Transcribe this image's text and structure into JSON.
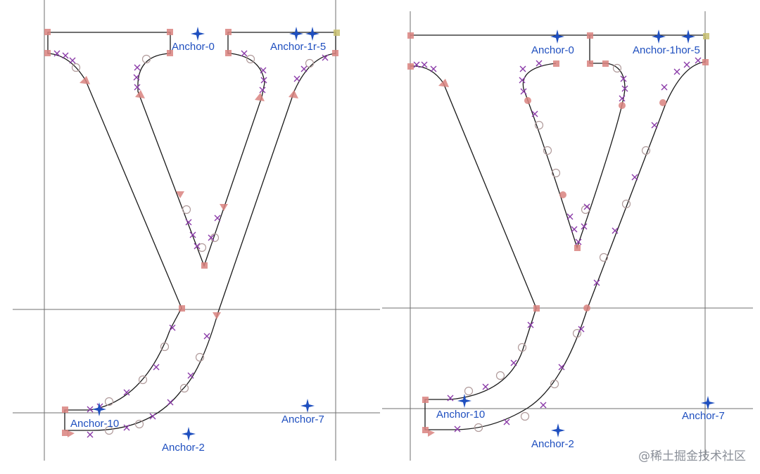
{
  "watermark": "@稀土掘金技术社区",
  "colors": {
    "guide": "#6f6f6f",
    "outline": "#1a1a1a",
    "node": "#d9837f",
    "cross": "#8a3aa8",
    "circle": "#b09a9a",
    "anchor": "#1f4fbf"
  },
  "panels": [
    {
      "name": "left",
      "anchors": [
        {
          "label": "Anchor-0"
        },
        {
          "label": "Anchor-1r-5"
        },
        {
          "label": "Anchor-10"
        },
        {
          "label": "Anchor-7"
        },
        {
          "label": "Anchor-2"
        }
      ]
    },
    {
      "name": "right",
      "anchors": [
        {
          "label": "Anchor-0"
        },
        {
          "label": "Anchor-1hor-5"
        },
        {
          "label": "Anchor-10"
        },
        {
          "label": "Anchor-7"
        },
        {
          "label": "Anchor-2"
        }
      ]
    }
  ]
}
